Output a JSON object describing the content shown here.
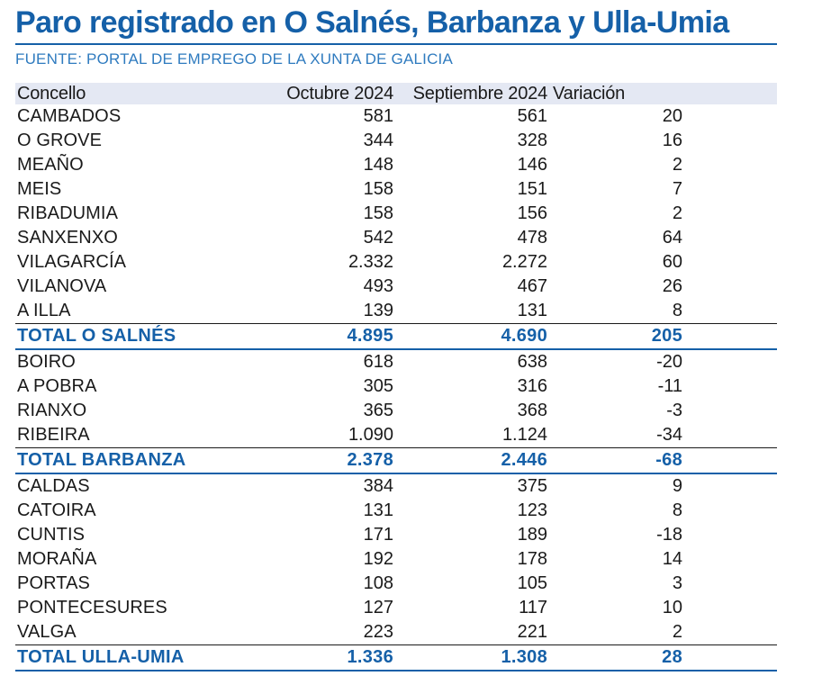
{
  "title": "Paro registrado en O Salnés, Barbanza y Ulla-Umia",
  "source": "FUENTE: PORTAL DE EMPREGO DE LA XUNTA DE GALICIA",
  "colors": {
    "accent": "#1560a8",
    "source_text": "#2f7bbf",
    "header_bg": "#e4e8f3"
  },
  "columns": {
    "concello": "Concello",
    "octubre": "Octubre 2024",
    "septiembre": "Septiembre 2024",
    "variacion": "Variación"
  },
  "rows": [
    {
      "name": "CAMBADOS",
      "oct": "581",
      "sep": "561",
      "var": "20"
    },
    {
      "name": "O GROVE",
      "oct": "344",
      "sep": "328",
      "var": "16"
    },
    {
      "name": "MEAÑO",
      "oct": "148",
      "sep": "146",
      "var": "2"
    },
    {
      "name": "MEIS",
      "oct": "158",
      "sep": "151",
      "var": "7"
    },
    {
      "name": "RIBADUMIA",
      "oct": "158",
      "sep": "156",
      "var": "2"
    },
    {
      "name": "SANXENXO",
      "oct": "542",
      "sep": "478",
      "var": "64"
    },
    {
      "name": "VILAGARCÍA",
      "oct": "2.332",
      "sep": "2.272",
      "var": "60"
    },
    {
      "name": "VILANOVA",
      "oct": "493",
      "sep": "467",
      "var": "26"
    },
    {
      "name": "A ILLA",
      "oct": "139",
      "sep": "131",
      "var": "8"
    },
    {
      "name": "TOTAL O SALNÉS",
      "oct": "4.895",
      "sep": "4.690",
      "var": "205"
    },
    {
      "name": "BOIRO",
      "oct": "618",
      "sep": "638",
      "var": "-20"
    },
    {
      "name": "A POBRA",
      "oct": "305",
      "sep": "316",
      "var": "-11"
    },
    {
      "name": "RIANXO",
      "oct": "365",
      "sep": "368",
      "var": "-3"
    },
    {
      "name": "RIBEIRA",
      "oct": "1.090",
      "sep": "1.124",
      "var": "-34"
    },
    {
      "name": "TOTAL BARBANZA",
      "oct": "2.378",
      "sep": "2.446",
      "var": "-68"
    },
    {
      "name": "CALDAS",
      "oct": "384",
      "sep": "375",
      "var": "9"
    },
    {
      "name": "CATOIRA",
      "oct": "131",
      "sep": "123",
      "var": "8"
    },
    {
      "name": "CUNTIS",
      "oct": "171",
      "sep": "189",
      "var": "-18"
    },
    {
      "name": "MORAÑA",
      "oct": "192",
      "sep": "178",
      "var": "14"
    },
    {
      "name": "PORTAS",
      "oct": "108",
      "sep": "105",
      "var": "3"
    },
    {
      "name": "PONTECESURES",
      "oct": "127",
      "sep": "117",
      "var": "10"
    },
    {
      "name": "VALGA",
      "oct": "223",
      "sep": "221",
      "var": "2"
    },
    {
      "name": "TOTAL ULLA-UMIA",
      "oct": "1.336",
      "sep": "1.308",
      "var": "28"
    }
  ]
}
